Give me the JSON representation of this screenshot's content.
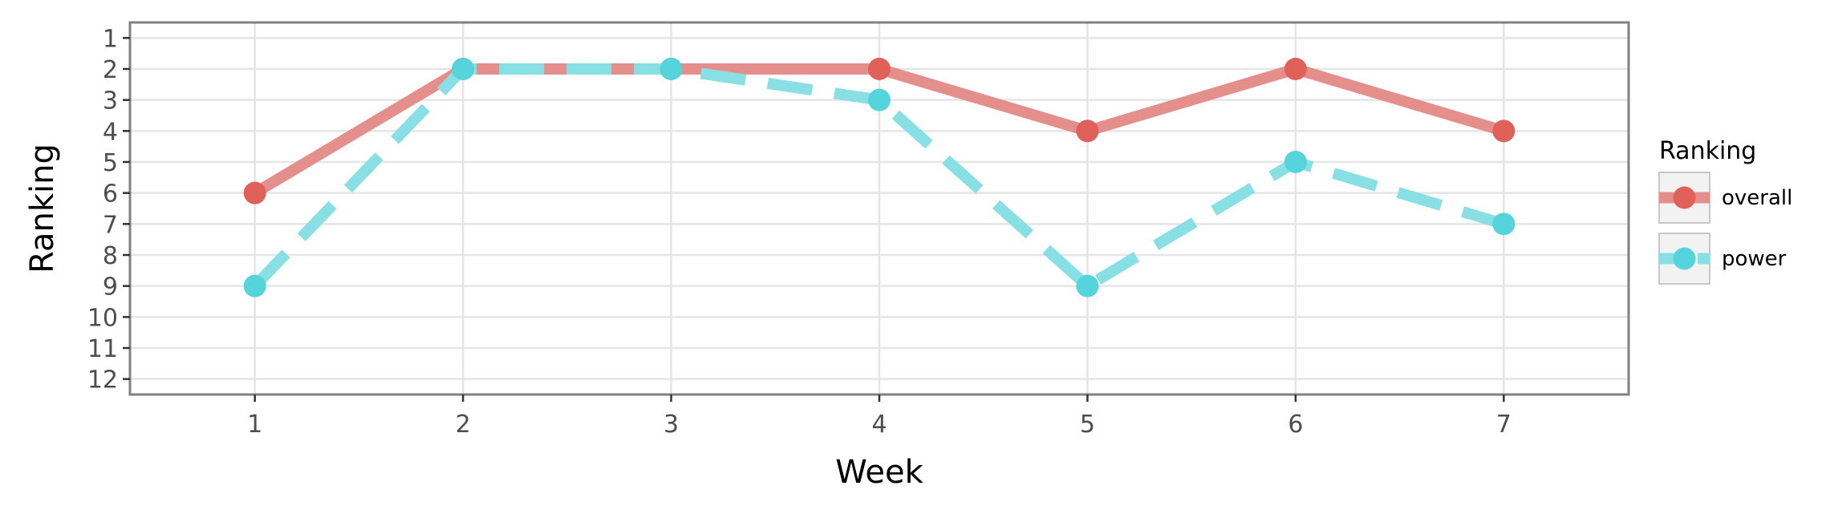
{
  "chart_data": {
    "type": "line",
    "xlabel": "Week",
    "ylabel": "Ranking",
    "x": [
      1,
      2,
      3,
      4,
      5,
      6,
      7
    ],
    "x_ticks": [
      "1",
      "2",
      "3",
      "4",
      "5",
      "6",
      "7"
    ],
    "xlim": [
      0.4,
      7.6
    ],
    "y_ticks": [
      "1",
      "2",
      "3",
      "4",
      "5",
      "6",
      "7",
      "8",
      "9",
      "10",
      "11",
      "12"
    ],
    "ylim": [
      12.5,
      0.5
    ],
    "y_reversed": true,
    "grid": true,
    "legend": {
      "title": "Ranking",
      "placement": "right"
    },
    "series": [
      {
        "name": "overall",
        "values": [
          6,
          2,
          2,
          2,
          4,
          2,
          4
        ],
        "color": "#e0605a",
        "line_color": "#e48f8b",
        "dashed": false
      },
      {
        "name": "power",
        "values": [
          9,
          2,
          2,
          3,
          9,
          5,
          7
        ],
        "color": "#56d4dc",
        "line_color": "#88e0e5",
        "dashed": true
      }
    ]
  }
}
